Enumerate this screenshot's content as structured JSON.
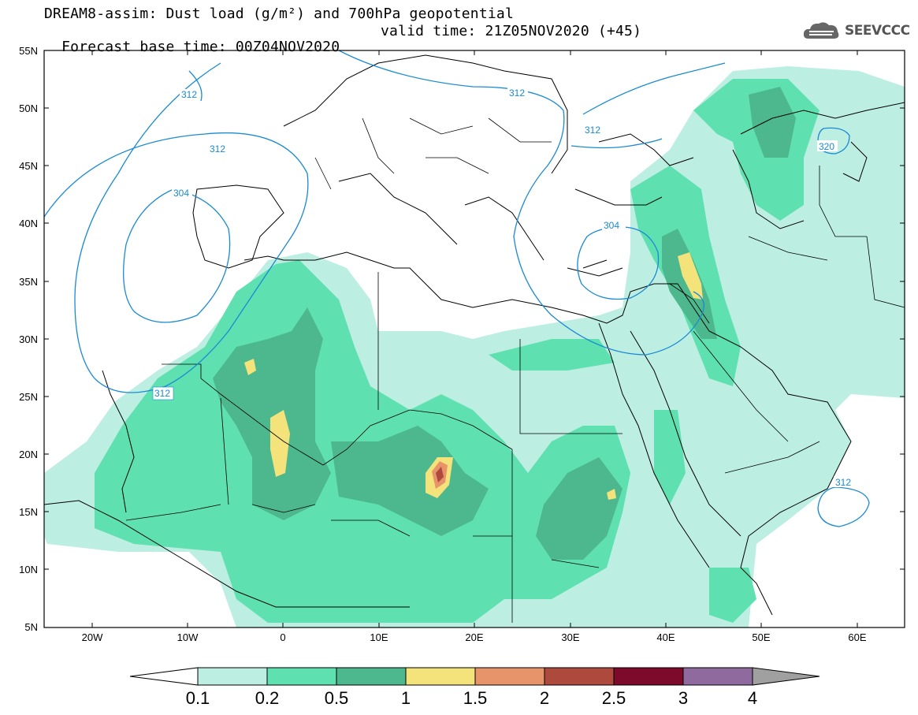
{
  "header": {
    "title": "DREAM8-assim: Dust load (g/m²) and 700hPa geopotential",
    "base_time": "Forecast base time: 00Z04NOV2020",
    "valid_time": "valid time: 21Z05NOV2020 (+45)"
  },
  "logo": {
    "text": "SEEVCCC",
    "icon": "cloud-icon"
  },
  "map": {
    "lat_labels": [
      "55N",
      "50N",
      "45N",
      "40N",
      "35N",
      "30N",
      "25N",
      "20N",
      "15N",
      "10N",
      "5N"
    ],
    "lon_labels": [
      "20W",
      "10W",
      "0",
      "10E",
      "20E",
      "30E",
      "40E",
      "50E",
      "60E"
    ],
    "contour_labels": [
      "312",
      "312",
      "304",
      "312",
      "312",
      "304",
      "320",
      "312",
      "312"
    ]
  },
  "colorbar": {
    "labels": [
      "0.1",
      "0.2",
      "0.5",
      "1",
      "1.5",
      "2",
      "2.5",
      "3",
      "4"
    ],
    "colors": [
      "#bdeee2",
      "#5fe0b0",
      "#4db88e",
      "#f4e27a",
      "#e8946a",
      "#ad4a3d",
      "#7d0a2a",
      "#8e6a9e"
    ],
    "under_color": "#ffffff",
    "over_color": "#a0a0a0"
  },
  "style": {
    "contour_color": "#1a8ad4",
    "land_line_color": "#000000"
  }
}
